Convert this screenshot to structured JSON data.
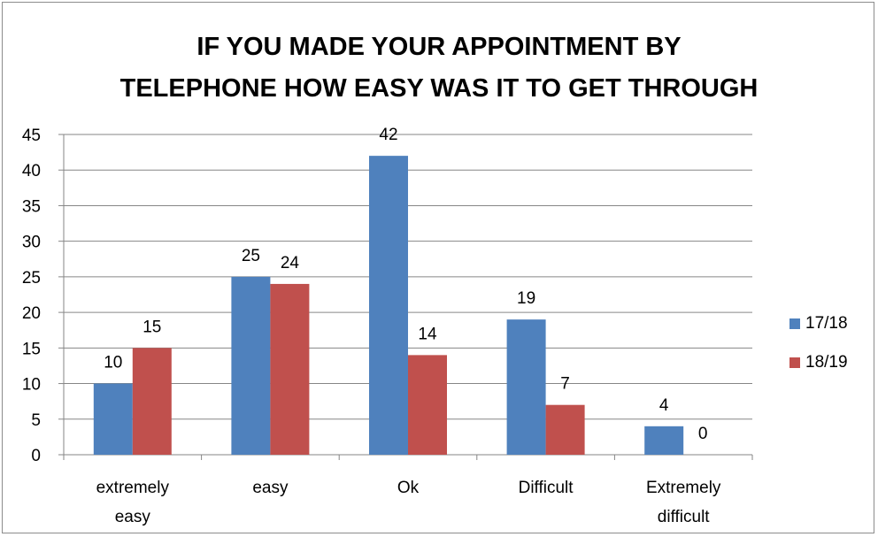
{
  "chart_data": {
    "type": "bar",
    "title_lines": [
      "IF YOU MADE YOUR APPOINTMENT BY",
      "TELEPHONE HOW EASY WAS IT TO GET THROUGH"
    ],
    "categories": [
      [
        "extremely",
        "easy"
      ],
      [
        "easy"
      ],
      [
        "Ok"
      ],
      [
        "Difficult"
      ],
      [
        "Extremely",
        "difficult"
      ]
    ],
    "series": [
      {
        "name": "17/18",
        "color": "#4f81bd",
        "values": [
          10,
          25,
          42,
          19,
          4
        ]
      },
      {
        "name": "18/19",
        "color": "#c0504d",
        "values": [
          15,
          24,
          14,
          7,
          0
        ]
      }
    ],
    "ylim": [
      0,
      45
    ],
    "yticks": [
      0,
      5,
      10,
      15,
      20,
      25,
      30,
      35,
      40,
      45
    ],
    "grid": true,
    "legend_position": "right"
  }
}
